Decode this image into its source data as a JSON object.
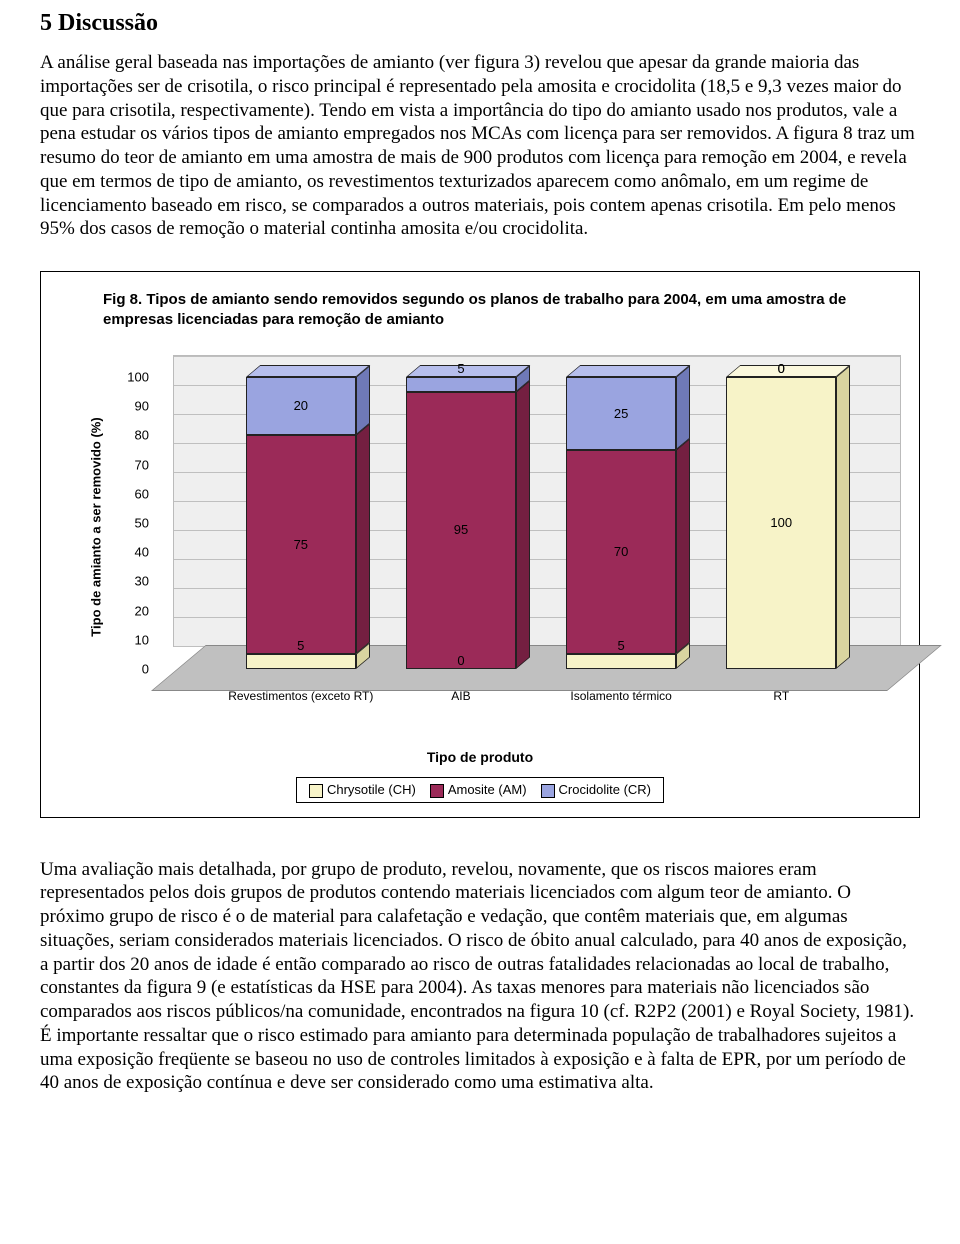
{
  "heading": "5 Discussão",
  "para1": "A análise geral baseada nas importações de amianto (ver figura 3) revelou que apesar da grande maioria das importações ser de crisotila, o risco principal é representado pela amosita e crocidolita (18,5 e 9,3 vezes maior do que para crisotila, respectivamente). Tendo em vista a importância do tipo do amianto usado nos produtos, vale a pena estudar os vários tipos de amianto empregados nos MCAs com licença para ser removidos. A figura 8 traz um resumo do teor de amianto em uma amostra de mais de 900 produtos com licença para remoção em 2004, e revela que em termos de tipo de amianto, os revestimentos texturizados aparecem como anômalo, em um regime de licenciamento baseado em risco, se comparados a outros materiais, pois contem apenas crisotila. Em pelo menos 95% dos casos de remoção o material continha amosita e/ou crocidolita.",
  "figure": {
    "title": "Fig 8. Tipos de amianto sendo removidos segundo os planos de trabalho para 2004, em uma amostra de empresas licenciadas para remoção de amianto",
    "y_label": "Tipo de amianto a ser removido (%)",
    "x_label": "Tipo de produto",
    "y_ticks": [
      0,
      10,
      20,
      30,
      40,
      50,
      60,
      70,
      80,
      90,
      100
    ],
    "categories": [
      "Revestimentos (exceto RT)",
      "AIB",
      "Isolamento térmico",
      "RT"
    ],
    "series": [
      {
        "name": "Chrysotile (CH)",
        "color": "#f7f3c8",
        "side": "#d9d4a0",
        "top": "#fbf8dd"
      },
      {
        "name": "Amosite (AM)",
        "color": "#9b2a58",
        "side": "#741f41",
        "top": "#b3457a"
      },
      {
        "name": "Crocidolite (CR)",
        "color": "#9aa4e0",
        "side": "#6f79b8",
        "top": "#b6beec"
      }
    ],
    "stacks": [
      {
        "ch": 5,
        "am": 75,
        "cr": 20
      },
      {
        "ch": 0,
        "am": 95,
        "cr": 5
      },
      {
        "ch": 5,
        "am": 70,
        "cr": 25
      },
      {
        "ch": 100,
        "am": 0,
        "cr": 0
      }
    ],
    "legend": [
      "Chrysotile (CH)",
      "Amosite (AM)",
      "Crocidolite (CR)"
    ]
  },
  "para2": "Uma avaliação mais detalhada, por grupo de produto, revelou, novamente, que os riscos maiores eram representados pelos dois grupos de produtos contendo materiais licenciados com algum teor de amianto. O próximo grupo de risco é o de material para calafetação e vedação, que contêm materiais que, em algumas situações, seriam considerados materiais licenciados. O risco de óbito anual calculado, para 40 anos de exposição, a partir dos 20 anos de idade é então comparado ao risco de outras fatalidades relacionadas ao local de trabalho, constantes da figura 9 (e estatísticas da HSE para 2004). As taxas menores para materiais não licenciados são comparados aos riscos públicos/na comunidade, encontrados na figura 10 (cf. R2P2 (2001) e Royal Society, 1981). É importante ressaltar que o risco estimado para amianto para determinada população de trabalhadores sujeitos a uma exposição freqüente se baseou no uso de controles limitados à exposição e à falta de EPR, por um período de 40 anos de exposição contínua e deve ser considerado como uma estimativa alta."
}
